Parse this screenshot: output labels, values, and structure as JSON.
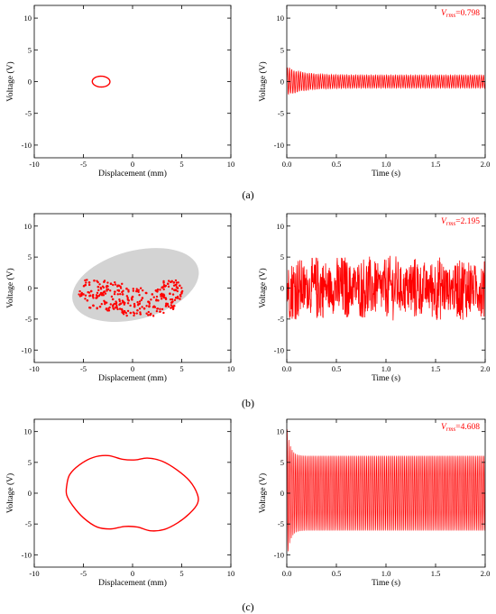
{
  "captions": [
    "(a)",
    "(b)",
    "(c)"
  ],
  "colors": {
    "trace": "#ff0000",
    "basin": "#d3d3d3",
    "axis": "#000000"
  },
  "chart_data": [
    {
      "type": "line",
      "panel": "a-phase",
      "xlabel": "Displacement (mm)",
      "ylabel": "Voltage (V)",
      "xlim": [
        -10,
        10
      ],
      "ylim": [
        -12,
        12
      ],
      "xticks": [
        -10,
        -5,
        0,
        5,
        10
      ],
      "yticks": [
        10,
        5,
        0,
        -5,
        -10
      ],
      "grid": false,
      "orbit": {
        "shape": "ellipse",
        "center": [
          -3.2,
          0
        ],
        "radius_x": 0.9,
        "radius_y": 0.85,
        "tilt_deg": -10
      }
    },
    {
      "type": "line",
      "panel": "a-time",
      "xlabel": "Time (s)",
      "ylabel": "Voltage (V)",
      "xlim": [
        0,
        2.0
      ],
      "ylim": [
        -12,
        12
      ],
      "xticks": [
        0.0,
        0.5,
        1.0,
        1.5,
        2.0
      ],
      "yticks": [
        10,
        5,
        0,
        -5,
        -10
      ],
      "annotation": {
        "symbol": "V",
        "subscript": "rms",
        "value": "=0.798"
      },
      "signal": {
        "kind": "decaying-oscillation",
        "transient_amp": 2.2,
        "steady_amp": 1.0,
        "settle_time": 0.5,
        "duration": 2.0
      }
    },
    {
      "type": "scatter",
      "panel": "b-phase",
      "xlabel": "Displacement (mm)",
      "ylabel": "Voltage (V)",
      "xlim": [
        -10,
        10
      ],
      "ylim": [
        -12,
        12
      ],
      "xticks": [
        -10,
        -5,
        0,
        5,
        10
      ],
      "yticks": [
        10,
        5,
        0,
        -5,
        -10
      ],
      "basin": {
        "shape": "ellipse",
        "center": [
          0.3,
          0.5
        ],
        "radius_x": 6.6,
        "radius_y": 5.5,
        "tilt_deg": -15
      },
      "points": [
        [
          -5.0,
          -1.0
        ],
        [
          -4.8,
          0.5
        ],
        [
          -4.6,
          -2.0
        ],
        [
          -4.4,
          0.9
        ],
        [
          -4.2,
          -0.5
        ],
        [
          -4.0,
          -2.8
        ],
        [
          -3.9,
          1.2
        ],
        [
          -3.7,
          -1.6
        ],
        [
          -3.5,
          0.2
        ],
        [
          -3.3,
          -3.0
        ],
        [
          -3.1,
          -1.1
        ],
        [
          -2.9,
          1.0
        ],
        [
          -2.8,
          -2.3
        ],
        [
          -2.6,
          -0.2
        ],
        [
          -2.4,
          -3.6
        ],
        [
          -2.2,
          0.7
        ],
        [
          -2.0,
          -1.8
        ],
        [
          -1.8,
          -0.6
        ],
        [
          -1.6,
          -3.1
        ],
        [
          -1.4,
          0.4
        ],
        [
          -1.2,
          -2.5
        ],
        [
          -1.0,
          -1.0
        ],
        [
          -0.8,
          -3.8
        ],
        [
          -0.6,
          -0.1
        ],
        [
          -0.4,
          -2.0
        ],
        [
          -0.2,
          -4.0
        ],
        [
          0.0,
          -1.4
        ],
        [
          0.2,
          -3.0
        ],
        [
          0.4,
          -0.5
        ],
        [
          0.6,
          -2.6
        ],
        [
          0.8,
          -4.2
        ],
        [
          1.0,
          -1.6
        ],
        [
          1.2,
          -3.3
        ],
        [
          1.4,
          -0.8
        ],
        [
          1.6,
          -2.2
        ],
        [
          1.8,
          -4.3
        ],
        [
          2.0,
          -1.0
        ],
        [
          2.2,
          -3.0
        ],
        [
          2.4,
          -0.4
        ],
        [
          2.6,
          -2.0
        ],
        [
          2.8,
          -3.8
        ],
        [
          3.0,
          0.1
        ],
        [
          3.2,
          -1.5
        ],
        [
          3.4,
          -2.9
        ],
        [
          3.6,
          0.7
        ],
        [
          3.8,
          -0.9
        ],
        [
          4.0,
          -2.3
        ],
        [
          4.2,
          0.9
        ],
        [
          4.4,
          -0.3
        ],
        [
          4.6,
          -1.6
        ],
        [
          4.8,
          0.4
        ],
        [
          5.0,
          -0.7
        ],
        [
          -4.3,
          -1.2
        ],
        [
          -3.2,
          -0.8
        ],
        [
          -2.0,
          -2.9
        ],
        [
          -0.9,
          -2.3
        ],
        [
          0.5,
          -3.6
        ],
        [
          1.7,
          -2.9
        ],
        [
          2.9,
          -1.3
        ],
        [
          3.9,
          -3.2
        ]
      ],
      "point_count": 300
    },
    {
      "type": "line",
      "panel": "b-time",
      "xlabel": "Time (s)",
      "ylabel": "Voltage (V)",
      "xlim": [
        0,
        2.0
      ],
      "ylim": [
        -12,
        12
      ],
      "xticks": [
        0.0,
        0.5,
        1.0,
        1.5,
        2.0
      ],
      "yticks": [
        10,
        5,
        0,
        -5,
        -10
      ],
      "annotation": {
        "symbol": "V",
        "subscript": "rms",
        "value": "=2.195"
      },
      "signal": {
        "kind": "chaotic",
        "amp": 5.3,
        "duration": 2.0
      }
    },
    {
      "type": "line",
      "panel": "c-phase",
      "xlabel": "Displacement (mm)",
      "ylabel": "Voltage (V)",
      "xlim": [
        -10,
        10
      ],
      "ylim": [
        -12,
        12
      ],
      "xticks": [
        -10,
        -5,
        0,
        5,
        10
      ],
      "yticks": [
        10,
        5,
        0,
        -5,
        -10
      ],
      "orbit": {
        "shape": "peanut",
        "points": [
          [
            -6.7,
            1.2
          ],
          [
            -6.4,
            3.0
          ],
          [
            -5.4,
            4.6
          ],
          [
            -4.0,
            5.8
          ],
          [
            -2.5,
            6.1
          ],
          [
            -1.0,
            5.5
          ],
          [
            0.3,
            5.4
          ],
          [
            1.5,
            5.7
          ],
          [
            3.0,
            5.2
          ],
          [
            4.5,
            3.8
          ],
          [
            5.8,
            2.0
          ],
          [
            6.6,
            -0.2
          ],
          [
            6.6,
            -1.7
          ],
          [
            5.8,
            -3.3
          ],
          [
            4.6,
            -4.8
          ],
          [
            3.2,
            -5.9
          ],
          [
            1.8,
            -6.1
          ],
          [
            0.5,
            -5.5
          ],
          [
            -0.8,
            -5.4
          ],
          [
            -2.2,
            -5.8
          ],
          [
            -3.6,
            -5.5
          ],
          [
            -5.0,
            -4.0
          ],
          [
            -6.1,
            -2.0
          ],
          [
            -6.7,
            -0.3
          ]
        ]
      }
    },
    {
      "type": "line",
      "panel": "c-time",
      "xlabel": "Time (s)",
      "ylabel": "Voltage (V)",
      "xlim": [
        0,
        2.0
      ],
      "ylim": [
        -12,
        12
      ],
      "xticks": [
        0.0,
        0.5,
        1.0,
        1.5,
        2.0
      ],
      "yticks": [
        10,
        5,
        0,
        -5,
        -10
      ],
      "annotation": {
        "symbol": "V",
        "subscript": "rms",
        "value": "=4.608"
      },
      "signal": {
        "kind": "decaying-oscillation",
        "transient_amp": 11.0,
        "steady_amp": 6.1,
        "settle_time": 0.1,
        "duration": 2.0
      }
    }
  ]
}
